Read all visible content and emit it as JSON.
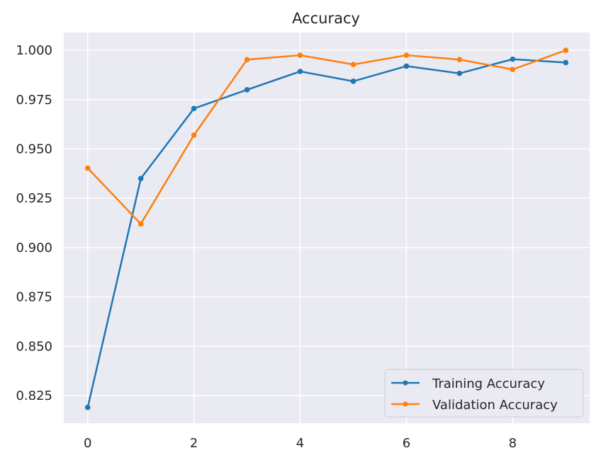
{
  "chart_data": {
    "type": "line",
    "title": "Accuracy",
    "xlabel": "",
    "ylabel": "",
    "x": [
      0,
      1,
      2,
      3,
      4,
      5,
      6,
      7,
      8,
      9
    ],
    "xlim": [
      -0.45,
      9.45
    ],
    "ylim": [
      0.811,
      1.009
    ],
    "xticks": [
      0,
      2,
      4,
      6,
      8
    ],
    "yticks": [
      0.825,
      0.85,
      0.875,
      0.9,
      0.925,
      0.95,
      0.975,
      1.0
    ],
    "ytick_labels": [
      "0.825",
      "0.850",
      "0.875",
      "0.900",
      "0.925",
      "0.950",
      "0.975",
      "1.000"
    ],
    "grid": true,
    "background_color": "#eaeaf2",
    "legend_position": "lower-right",
    "series": [
      {
        "name": "Training Accuracy",
        "color": "#1f77b4",
        "marker": "circle",
        "values": [
          0.819,
          0.935,
          0.9705,
          0.98,
          0.9893,
          0.9843,
          0.992,
          0.9883,
          0.9955,
          0.9938
        ]
      },
      {
        "name": "Validation Accuracy",
        "color": "#ff7f0e",
        "marker": "circle",
        "values": [
          0.9403,
          0.912,
          0.957,
          0.9953,
          0.9975,
          0.9928,
          0.9975,
          0.9953,
          0.9903,
          1.0
        ]
      }
    ]
  }
}
